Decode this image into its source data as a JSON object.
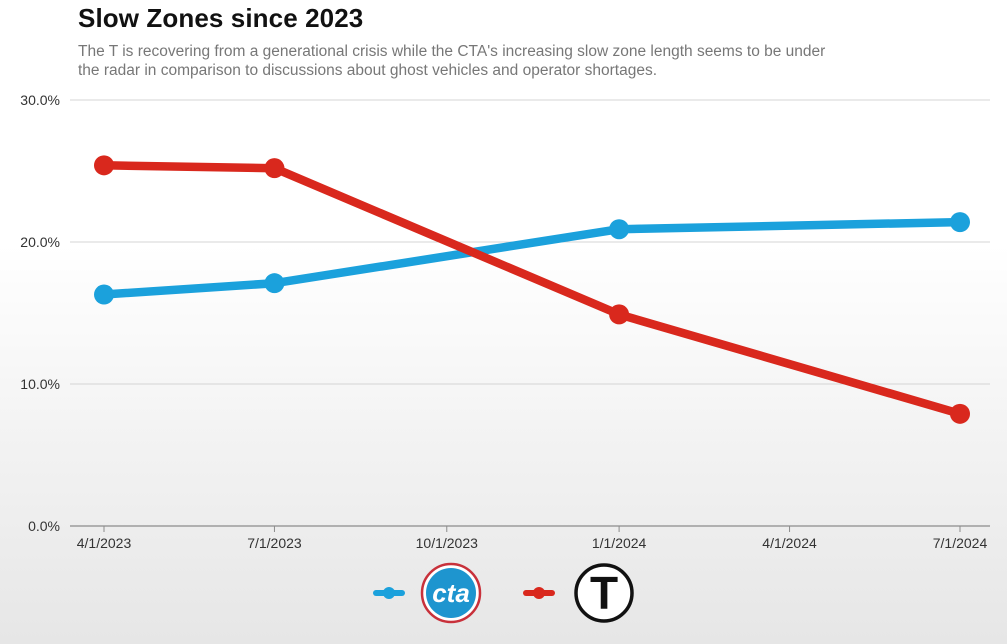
{
  "chart_data": {
    "type": "line",
    "title": "Slow Zones since 2023",
    "subtitle": "The T is recovering from a generational crisis while the CTA's increasing slow zone length seems to be under the radar in comparison to discussions about ghost vehicles and operator shortages.",
    "xlabel": "",
    "ylabel": "",
    "x_ticks": [
      "4/1/2023",
      "7/1/2023",
      "10/1/2023",
      "1/1/2024",
      "4/1/2024",
      "7/1/2024"
    ],
    "y_ticks": [
      "0.0%",
      "10.0%",
      "20.0%",
      "30.0%"
    ],
    "ylim": [
      0,
      30
    ],
    "grid": true,
    "legend": "bottom-center",
    "series": [
      {
        "legend_logo": "cta-logo",
        "logo_text": "cta",
        "color": "#1ba1dc",
        "points": [
          {
            "x": "4/1/2023",
            "y": 16.3
          },
          {
            "x": "7/1/2023",
            "y": 17.1
          },
          {
            "x": "1/1/2024",
            "y": 20.9
          },
          {
            "x": "7/1/2024",
            "y": 21.4
          }
        ]
      },
      {
        "legend_logo": "mbta-t-logo",
        "logo_text": "T",
        "color": "#d9281d",
        "points": [
          {
            "x": "4/1/2023",
            "y": 25.4
          },
          {
            "x": "7/1/2023",
            "y": 25.2
          },
          {
            "x": "1/1/2024",
            "y": 14.9
          },
          {
            "x": "7/1/2024",
            "y": 7.9
          }
        ]
      }
    ]
  }
}
